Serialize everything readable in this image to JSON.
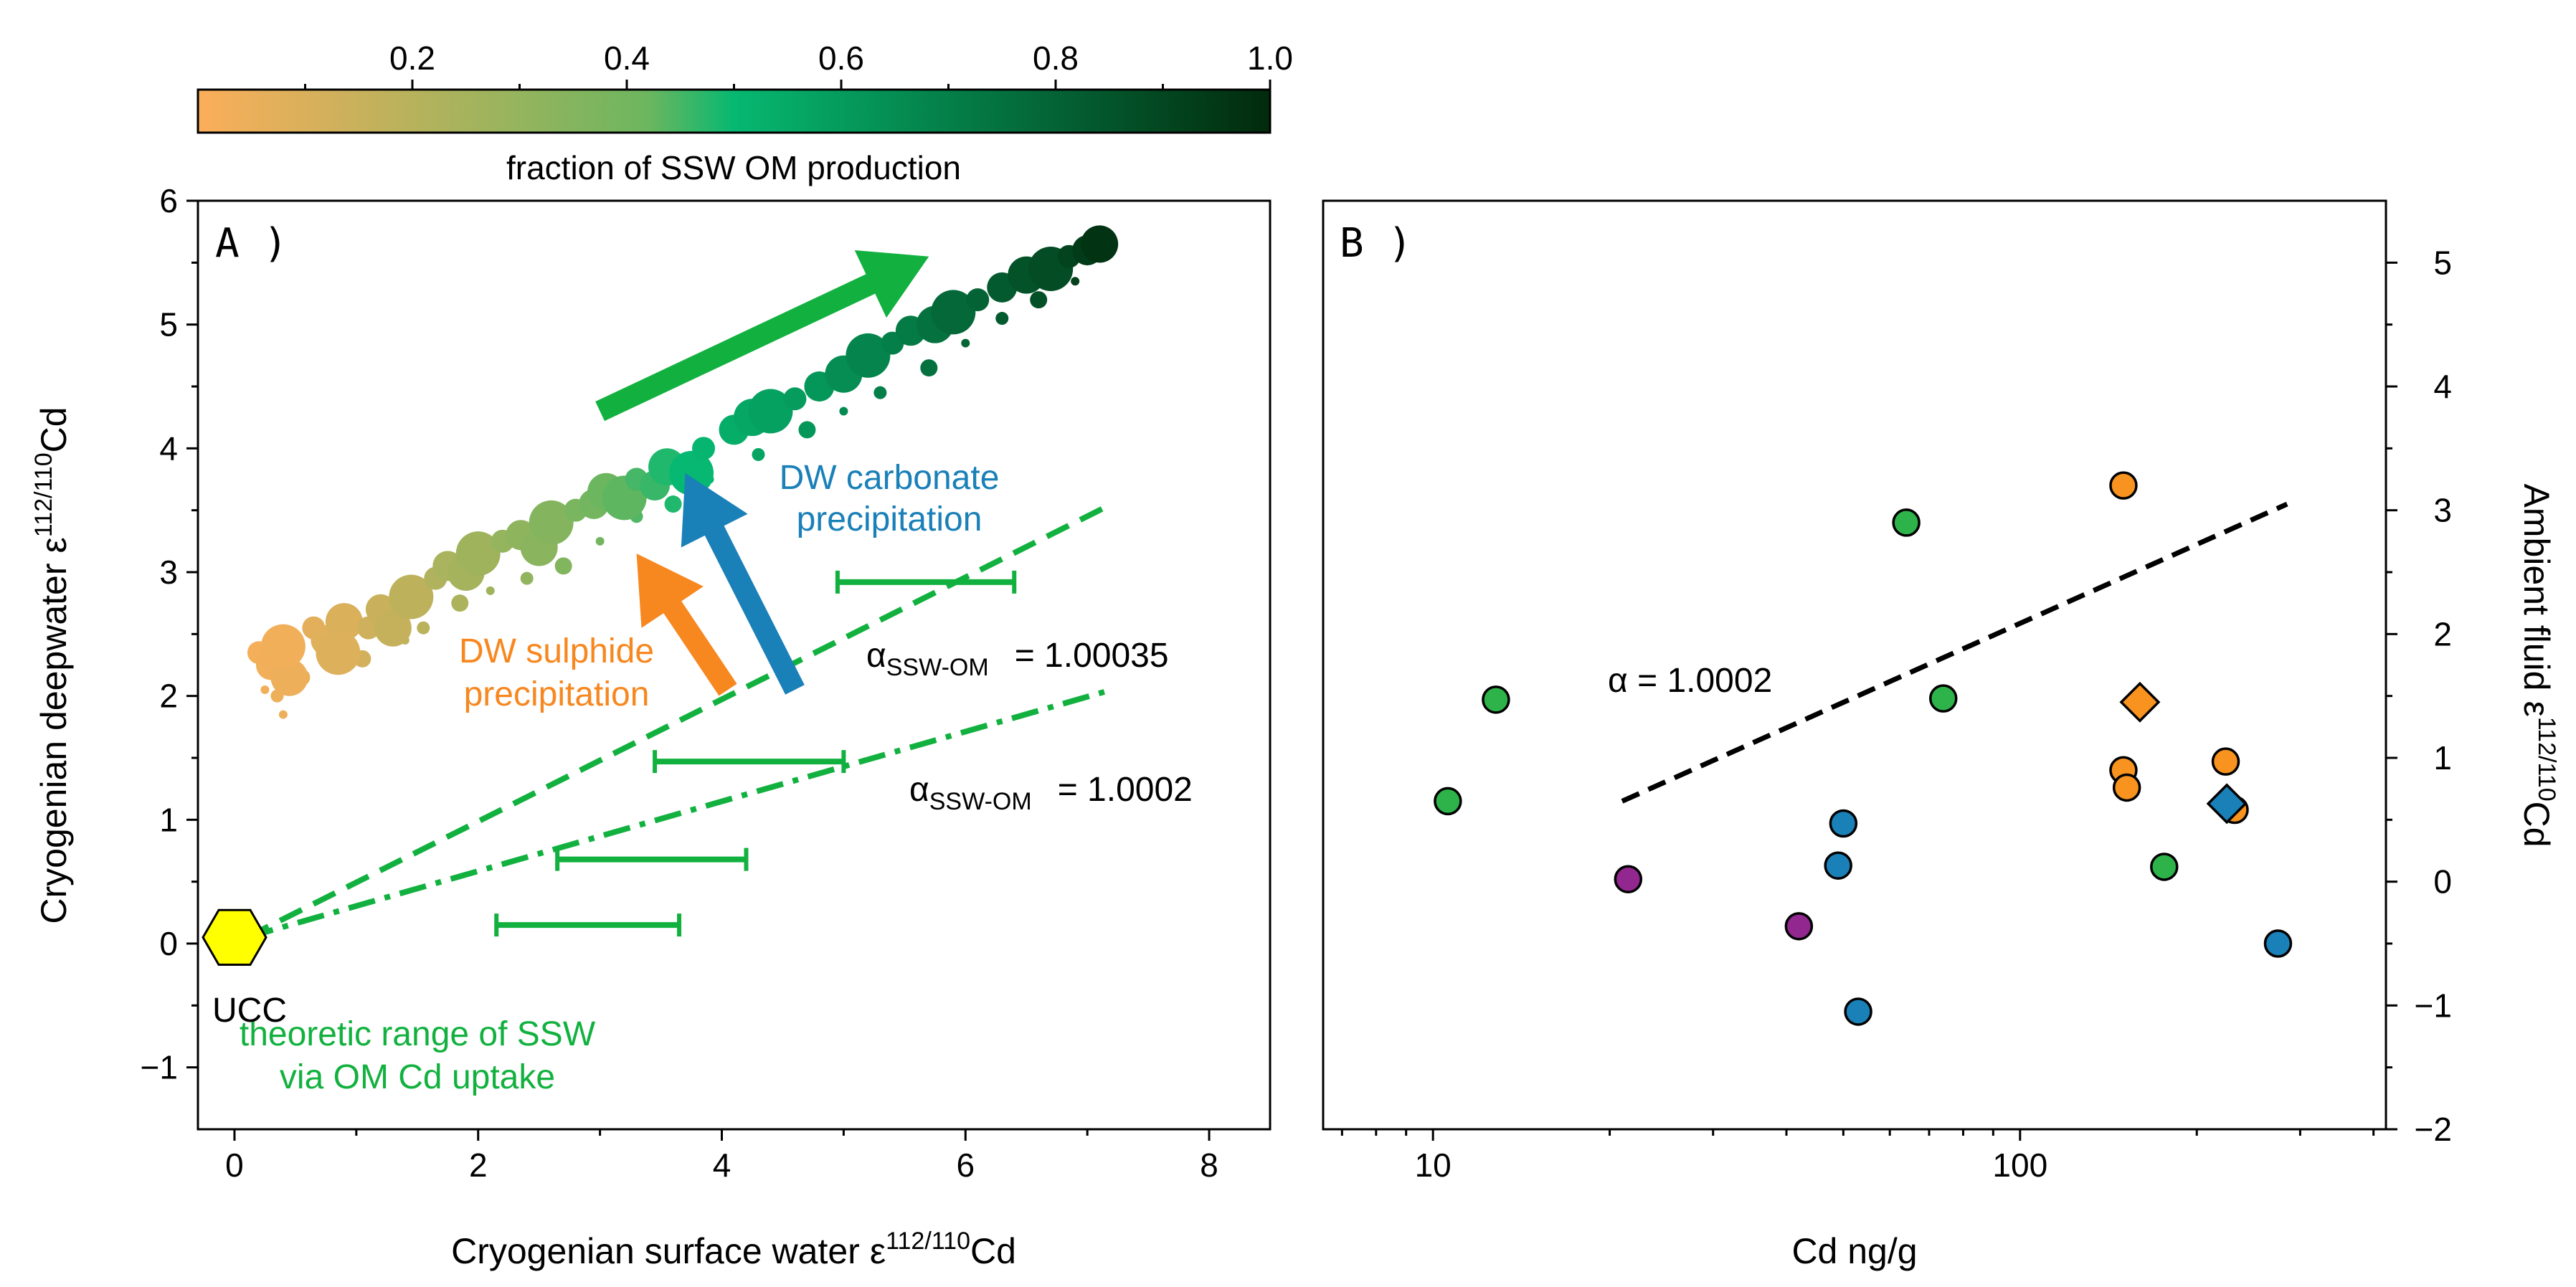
{
  "chart_data": {
    "colorbar": {
      "label": "fraction of SSW OM production",
      "ticks": [
        "0.2",
        "0.4",
        "0.6",
        "0.8",
        "1.0"
      ],
      "tick_values": [
        0.2,
        0.4,
        0.6,
        0.8,
        1.0
      ],
      "range": [
        0,
        1
      ],
      "colors": [
        "#fcae5a",
        "#6cb65f",
        "#06b871",
        "#022a0c"
      ]
    },
    "panelA": {
      "type": "scatter",
      "letter": "A )",
      "xlabel": "Cryogenian surface water",
      "ylabel": "Cryogenian deepwater",
      "epsilon": "ε",
      "iso_sup": "112/110",
      "iso_el": "Cd",
      "xlim": [
        -0.3,
        8.5
      ],
      "ylim": [
        -1.5,
        6
      ],
      "xticks": [
        0,
        2,
        4,
        6,
        8
      ],
      "xtick_labels": [
        "0",
        "2",
        "4",
        "6",
        "8"
      ],
      "yticks": [
        -1,
        0,
        1,
        2,
        3,
        4,
        5,
        6
      ],
      "ytick_labels": [
        "−1",
        "0",
        "1",
        "2",
        "3",
        "4",
        "5",
        "6"
      ],
      "ucc": {
        "label": "UCC",
        "x": 0.0,
        "y": 0.05
      },
      "alpha_lines": [
        {
          "label_sym": "α",
          "label_sub": "SSW-OM",
          "label_val": "= 1.00035",
          "x": [
            0.1,
            7.2
          ],
          "y": [
            0.05,
            3.55
          ],
          "style": "dashed"
        },
        {
          "label_sym": "α",
          "label_sub": "SSW-OM",
          "label_val": "= 1.0002",
          "x": [
            0.1,
            7.2
          ],
          "y": [
            0.05,
            2.05
          ],
          "style": "dashdot"
        }
      ],
      "ranges": [
        {
          "x": [
            2.15,
            3.65
          ],
          "y": 0.15
        },
        {
          "x": [
            2.65,
            4.2
          ],
          "y": 0.68
        },
        {
          "x": [
            3.45,
            5.0
          ],
          "y": 1.47
        },
        {
          "x": [
            4.95,
            6.4
          ],
          "y": 2.92
        }
      ],
      "range_label": [
        "theoretic range of SSW",
        "via OM Cd uptake"
      ],
      "arrows": [
        {
          "label": [
            "DW sulphide",
            "precipitation"
          ],
          "color": "#f7871f",
          "from": [
            4.05,
            2.05
          ],
          "to": [
            3.3,
            3.15
          ]
        },
        {
          "label": [
            "DW carbonate",
            "precipitation"
          ],
          "color": "#1a80b8",
          "from": [
            4.6,
            2.05
          ],
          "to": [
            3.7,
            3.8
          ]
        },
        {
          "label": [],
          "color": "#12b13f",
          "from": [
            3.0,
            4.3
          ],
          "to": [
            5.7,
            5.55
          ]
        }
      ],
      "big_points": [
        {
          "x": 0.2,
          "y": 2.35,
          "f": 0.02
        },
        {
          "x": 0.3,
          "y": 2.25,
          "f": 0.03
        },
        {
          "x": 0.45,
          "y": 2.15,
          "f": 0.04
        },
        {
          "x": 0.4,
          "y": 2.4,
          "f": 0.03
        },
        {
          "x": 0.65,
          "y": 2.55,
          "f": 0.07
        },
        {
          "x": 0.75,
          "y": 2.45,
          "f": 0.08
        },
        {
          "x": 0.9,
          "y": 2.6,
          "f": 0.1
        },
        {
          "x": 0.85,
          "y": 2.35,
          "f": 0.09
        },
        {
          "x": 1.1,
          "y": 2.55,
          "f": 0.13
        },
        {
          "x": 1.2,
          "y": 2.7,
          "f": 0.15
        },
        {
          "x": 1.3,
          "y": 2.55,
          "f": 0.16
        },
        {
          "x": 1.45,
          "y": 2.8,
          "f": 0.18
        },
        {
          "x": 1.65,
          "y": 2.95,
          "f": 0.22
        },
        {
          "x": 1.75,
          "y": 3.05,
          "f": 0.24
        },
        {
          "x": 1.9,
          "y": 3.0,
          "f": 0.25
        },
        {
          "x": 2.0,
          "y": 3.15,
          "f": 0.27
        },
        {
          "x": 2.2,
          "y": 3.25,
          "f": 0.3
        },
        {
          "x": 2.35,
          "y": 3.3,
          "f": 0.32
        },
        {
          "x": 2.5,
          "y": 3.2,
          "f": 0.33
        },
        {
          "x": 2.6,
          "y": 3.4,
          "f": 0.35
        },
        {
          "x": 2.8,
          "y": 3.5,
          "f": 0.38
        },
        {
          "x": 2.95,
          "y": 3.55,
          "f": 0.4
        },
        {
          "x": 3.05,
          "y": 3.65,
          "f": 0.42
        },
        {
          "x": 3.2,
          "y": 3.6,
          "f": 0.43
        },
        {
          "x": 3.3,
          "y": 3.75,
          "f": 0.45
        },
        {
          "x": 3.45,
          "y": 3.7,
          "f": 0.46
        },
        {
          "x": 3.55,
          "y": 3.85,
          "f": 0.48
        },
        {
          "x": 3.75,
          "y": 3.8,
          "f": 0.5
        },
        {
          "x": 3.85,
          "y": 4.0,
          "f": 0.51
        },
        {
          "x": 4.1,
          "y": 4.15,
          "f": 0.54
        },
        {
          "x": 4.25,
          "y": 4.25,
          "f": 0.56
        },
        {
          "x": 4.4,
          "y": 4.3,
          "f": 0.58
        },
        {
          "x": 4.6,
          "y": 4.4,
          "f": 0.6
        },
        {
          "x": 4.8,
          "y": 4.5,
          "f": 0.62
        },
        {
          "x": 5.0,
          "y": 4.6,
          "f": 0.65
        },
        {
          "x": 5.2,
          "y": 4.75,
          "f": 0.68
        },
        {
          "x": 5.4,
          "y": 4.85,
          "f": 0.7
        },
        {
          "x": 5.55,
          "y": 4.95,
          "f": 0.72
        },
        {
          "x": 5.75,
          "y": 5.0,
          "f": 0.75
        },
        {
          "x": 5.9,
          "y": 5.1,
          "f": 0.78
        },
        {
          "x": 6.1,
          "y": 5.2,
          "f": 0.8
        },
        {
          "x": 6.3,
          "y": 5.3,
          "f": 0.83
        },
        {
          "x": 6.5,
          "y": 5.4,
          "f": 0.86
        },
        {
          "x": 6.7,
          "y": 5.45,
          "f": 0.88
        },
        {
          "x": 6.85,
          "y": 5.55,
          "f": 0.91
        },
        {
          "x": 7.0,
          "y": 5.6,
          "f": 0.94
        },
        {
          "x": 7.1,
          "y": 5.65,
          "f": 0.97
        }
      ],
      "small_points": [
        {
          "x": 0.25,
          "y": 2.05,
          "f": 0.03
        },
        {
          "x": 0.35,
          "y": 2.0,
          "f": 0.04
        },
        {
          "x": 0.55,
          "y": 2.15,
          "f": 0.06
        },
        {
          "x": 0.4,
          "y": 1.85,
          "f": 0.04
        },
        {
          "x": 0.9,
          "y": 2.25,
          "f": 0.1
        },
        {
          "x": 1.05,
          "y": 2.3,
          "f": 0.12
        },
        {
          "x": 1.4,
          "y": 2.45,
          "f": 0.17
        },
        {
          "x": 1.55,
          "y": 2.55,
          "f": 0.19
        },
        {
          "x": 1.85,
          "y": 2.75,
          "f": 0.23
        },
        {
          "x": 2.1,
          "y": 2.85,
          "f": 0.27
        },
        {
          "x": 2.4,
          "y": 2.95,
          "f": 0.31
        },
        {
          "x": 2.7,
          "y": 3.05,
          "f": 0.36
        },
        {
          "x": 3.0,
          "y": 3.25,
          "f": 0.4
        },
        {
          "x": 3.3,
          "y": 3.45,
          "f": 0.44
        },
        {
          "x": 3.6,
          "y": 3.55,
          "f": 0.48
        },
        {
          "x": 3.9,
          "y": 3.75,
          "f": 0.52
        },
        {
          "x": 4.3,
          "y": 3.95,
          "f": 0.57
        },
        {
          "x": 4.7,
          "y": 4.15,
          "f": 0.62
        },
        {
          "x": 5.0,
          "y": 4.3,
          "f": 0.66
        },
        {
          "x": 5.3,
          "y": 4.45,
          "f": 0.7
        },
        {
          "x": 5.7,
          "y": 4.65,
          "f": 0.75
        },
        {
          "x": 6.0,
          "y": 4.85,
          "f": 0.79
        },
        {
          "x": 6.3,
          "y": 5.05,
          "f": 0.83
        },
        {
          "x": 6.6,
          "y": 5.2,
          "f": 0.87
        },
        {
          "x": 6.9,
          "y": 5.35,
          "f": 0.92
        }
      ]
    },
    "panelB": {
      "type": "scatter",
      "letter": "B )",
      "xlabel": "Cd ng/g",
      "ylabel": "Ambient fluid",
      "xscale": "log",
      "xlim": [
        6.5,
        420
      ],
      "ylim": [
        -2,
        5.5
      ],
      "xtick_labels": [
        "10",
        "100"
      ],
      "xtick_values": [
        10,
        100
      ],
      "minor_xticks": [
        7,
        8,
        9,
        20,
        30,
        40,
        50,
        60,
        70,
        80,
        90,
        200,
        300,
        400
      ],
      "yticks": [
        -2,
        -1,
        0,
        1,
        2,
        3,
        4,
        5
      ],
      "ytick_labels": [
        "−2",
        "−1",
        "0",
        "1",
        "2",
        "3",
        "4",
        "5"
      ],
      "fit_label": "α = 1.0002",
      "fit_line": {
        "x": [
          21,
          285
        ],
        "y": [
          0.65,
          3.05
        ]
      },
      "points": [
        {
          "x": 10.6,
          "y": 0.65,
          "color": "#2db34a",
          "shape": "circle"
        },
        {
          "x": 12.8,
          "y": 1.47,
          "color": "#2db34a",
          "shape": "circle"
        },
        {
          "x": 21.5,
          "y": 0.02,
          "color": "#92278f",
          "shape": "circle"
        },
        {
          "x": 42,
          "y": -0.36,
          "color": "#92278f",
          "shape": "circle"
        },
        {
          "x": 49,
          "y": 0.13,
          "color": "#1a80b8",
          "shape": "circle"
        },
        {
          "x": 50,
          "y": 0.47,
          "color": "#1a80b8",
          "shape": "circle"
        },
        {
          "x": 53,
          "y": -1.05,
          "color": "#1a80b8",
          "shape": "circle"
        },
        {
          "x": 64,
          "y": 2.9,
          "color": "#2db34a",
          "shape": "circle"
        },
        {
          "x": 74,
          "y": 1.48,
          "color": "#2db34a",
          "shape": "circle"
        },
        {
          "x": 150,
          "y": 3.2,
          "color": "#f7931e",
          "shape": "circle"
        },
        {
          "x": 150,
          "y": 0.9,
          "color": "#f7931e",
          "shape": "circle"
        },
        {
          "x": 152,
          "y": 0.76,
          "color": "#f7931e",
          "shape": "circle"
        },
        {
          "x": 160,
          "y": 1.45,
          "color": "#f7931e",
          "shape": "diamond"
        },
        {
          "x": 176,
          "y": 0.12,
          "color": "#2db34a",
          "shape": "circle"
        },
        {
          "x": 224,
          "y": 0.97,
          "color": "#f7931e",
          "shape": "circle"
        },
        {
          "x": 232,
          "y": 0.58,
          "color": "#f7931e",
          "shape": "circle"
        },
        {
          "x": 225,
          "y": 0.63,
          "color": "#1a80b8",
          "shape": "diamond"
        },
        {
          "x": 275,
          "y": -0.5,
          "color": "#1a80b8",
          "shape": "circle"
        }
      ]
    }
  }
}
